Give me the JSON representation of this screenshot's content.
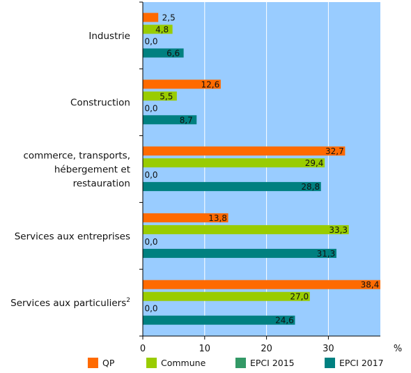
{
  "chart_data": {
    "type": "bar",
    "orientation": "horizontal",
    "categories": [
      [
        "Industrie"
      ],
      [
        "Construction"
      ],
      [
        "commerce, transports,",
        "hébergement et",
        "restauration"
      ],
      [
        "Services aux entreprises"
      ],
      [
        "Services aux particuliers"
      ]
    ],
    "category_superscripts": [
      "",
      "",
      "",
      "",
      "2"
    ],
    "series": [
      {
        "name": "QP",
        "color": "#ff6a00",
        "values": [
          2.5,
          12.6,
          32.7,
          13.8,
          38.4
        ],
        "labels": [
          "2,5",
          "12,6",
          "32,7",
          "13,8",
          "38,4"
        ]
      },
      {
        "name": "Commune",
        "color": "#99cc00",
        "values": [
          4.8,
          5.5,
          29.4,
          33.3,
          27.0
        ],
        "labels": [
          "4,8",
          "5,5",
          "29,4",
          "33,3",
          "27,0"
        ]
      },
      {
        "name": "EPCI 2015",
        "color": "#339966",
        "values": [
          0.0,
          0.0,
          0.0,
          0.0,
          0.0
        ],
        "labels": [
          "0,0",
          "0,0",
          "0,0",
          "0,0",
          "0,0"
        ]
      },
      {
        "name": "EPCI 2017",
        "color": "#008080",
        "values": [
          6.6,
          8.7,
          28.8,
          31.3,
          24.6
        ],
        "labels": [
          "6,6",
          "8,7",
          "28,8",
          "31,3",
          "24,6"
        ]
      }
    ],
    "xlim": [
      0,
      38.4
    ],
    "xticks": [
      0,
      10,
      20,
      30
    ],
    "xlabel": "%",
    "plot_background": "#99ccff",
    "grid": true,
    "legend_position": "bottom"
  }
}
